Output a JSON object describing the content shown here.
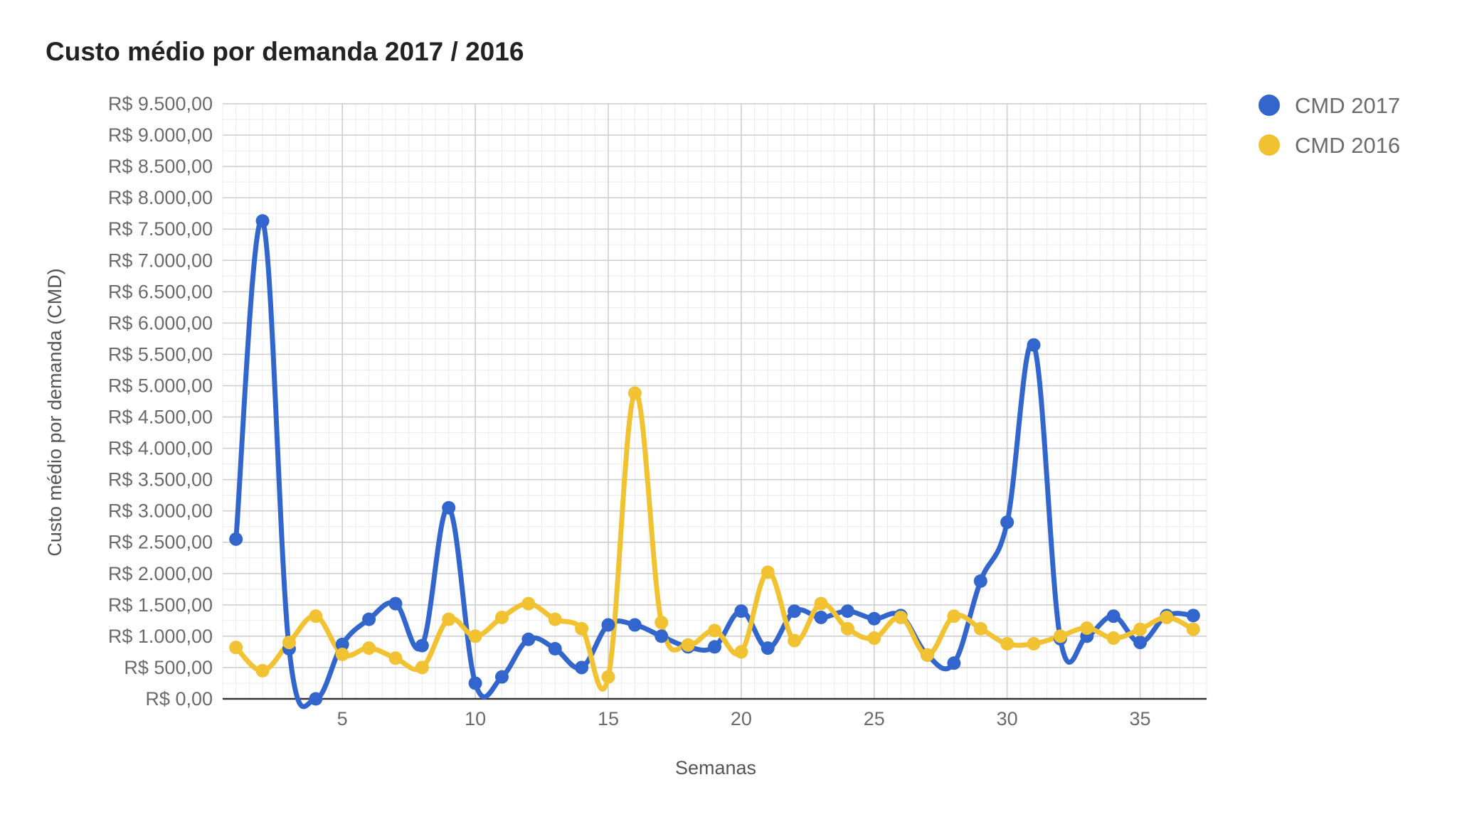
{
  "chart_data": {
    "type": "line",
    "title": "Custo médio por demanda 2017 / 2016",
    "xlabel": "Semanas",
    "ylabel": "Custo médio por demanda (CMD)",
    "xlim": [
      0.5,
      37.5
    ],
    "ylim": [
      0,
      9500
    ],
    "x_ticks": [
      5,
      10,
      15,
      20,
      25,
      30,
      35
    ],
    "y_ticks": [
      0,
      500,
      1000,
      1500,
      2000,
      2500,
      3000,
      3500,
      4000,
      4500,
      5000,
      5500,
      6000,
      6500,
      7000,
      7500,
      8000,
      8500,
      9000,
      9500
    ],
    "y_tick_labels": [
      "R$ 0,00",
      "R$ 500,00",
      "R$ 1.000,00",
      "R$ 1.500,00",
      "R$ 2.000,00",
      "R$ 2.500,00",
      "R$ 3.000,00",
      "R$ 3.500,00",
      "R$ 4.000,00",
      "R$ 4.500,00",
      "R$ 5.000,00",
      "R$ 5.500,00",
      "R$ 6.000,00",
      "R$ 6.500,00",
      "R$ 7.000,00",
      "R$ 7.500,00",
      "R$ 8.000,00",
      "R$ 8.500,00",
      "R$ 9.000,00",
      "R$ 9.500,00"
    ],
    "grid": true,
    "legend_position": "top-right",
    "x": [
      1,
      2,
      3,
      4,
      5,
      6,
      7,
      8,
      9,
      10,
      11,
      12,
      13,
      14,
      15,
      16,
      17,
      18,
      19,
      20,
      21,
      22,
      23,
      24,
      25,
      26,
      27,
      28,
      29,
      30,
      31,
      32,
      33,
      34,
      35,
      36,
      37
    ],
    "series": [
      {
        "name": "CMD 2017",
        "color": "#3366cc",
        "values": [
          2550,
          7630,
          800,
          0,
          870,
          1270,
          1520,
          850,
          3050,
          250,
          350,
          950,
          800,
          500,
          1180,
          1180,
          1000,
          830,
          830,
          1400,
          810,
          1400,
          1300,
          1400,
          1280,
          1330,
          700,
          570,
          1880,
          2820,
          5650,
          960,
          1000,
          1320,
          900,
          1330,
          1330
        ]
      },
      {
        "name": "CMD 2016",
        "color": "#f1c232",
        "values": [
          820,
          450,
          900,
          1320,
          710,
          810,
          650,
          500,
          1270,
          1000,
          1300,
          1520,
          1270,
          1120,
          350,
          4880,
          1220,
          860,
          1090,
          750,
          2020,
          930,
          1520,
          1120,
          970,
          1300,
          700,
          1320,
          1120,
          880,
          880,
          1000,
          1130,
          970,
          1110,
          1300,
          1110
        ]
      }
    ]
  }
}
